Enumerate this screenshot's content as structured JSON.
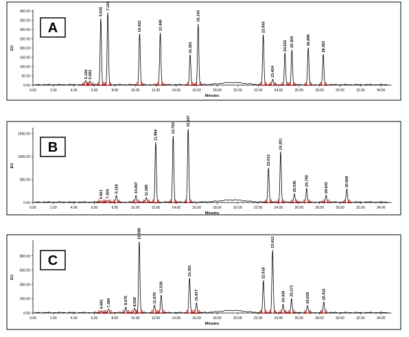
{
  "chart_data": [
    {
      "type": "line",
      "panel_label": "A",
      "xlabel": "Minutes",
      "ylabel": "EU",
      "xlim": [
        0,
        35
      ],
      "ylim": [
        0,
        400
      ],
      "x_ticks": [
        "0.00",
        "2.00",
        "4.00",
        "6.00",
        "8.00",
        "10.00",
        "12.00",
        "14.00",
        "16.00",
        "18.00",
        "20.00",
        "22.00",
        "24.00",
        "26.00",
        "28.00",
        "30.00",
        "32.00",
        "34.00"
      ],
      "y_ticks": [
        "0.00",
        "50.00",
        "100.00",
        "150.00",
        "200.00",
        "250.00",
        "300.00",
        "350.00",
        "400.00"
      ],
      "peaks": [
        {
          "rt": 5.16,
          "label": "5.160",
          "height": 22
        },
        {
          "rt": 5.583,
          "label": "5.583",
          "height": 20
        },
        {
          "rt": 6.632,
          "label": "6.632",
          "height": 360
        },
        {
          "rt": 7.316,
          "label": "7.316",
          "height": 390
        },
        {
          "rt": 10.422,
          "label": "10.422",
          "height": 275
        },
        {
          "rt": 12.44,
          "label": "12.440",
          "height": 280
        },
        {
          "rt": 15.361,
          "label": "15.361",
          "height": 160
        },
        {
          "rt": 16.143,
          "label": "16.143",
          "height": 330
        },
        {
          "rt": 22.503,
          "label": "22.503",
          "height": 270
        },
        {
          "rt": 23.424,
          "label": "23.424",
          "height": 30
        },
        {
          "rt": 24.623,
          "label": "24.623",
          "height": 170
        },
        {
          "rt": 25.304,
          "label": "25.304",
          "height": 190
        },
        {
          "rt": 26.898,
          "label": "26.898",
          "height": 200
        },
        {
          "rt": 28.363,
          "label": "28.363",
          "height": 165
        }
      ]
    },
    {
      "type": "line",
      "panel_label": "B",
      "xlabel": "Minutes",
      "ylabel": "EU",
      "xlim": [
        0,
        35
      ],
      "ylim": [
        0,
        1600
      ],
      "x_ticks": [
        "0.00",
        "2.00",
        "4.00",
        "6.00",
        "8.00",
        "10.00",
        "12.00",
        "14.00",
        "16.00",
        "18.00",
        "20.00",
        "22.00",
        "24.00",
        "26.00",
        "28.00",
        "30.00",
        "32.00",
        "34.00"
      ],
      "y_ticks": [
        "0.00",
        "500.00",
        "1000.00",
        "1500.00"
      ],
      "peaks": [
        {
          "rt": 6.661,
          "label": "6.661",
          "height": 30
        },
        {
          "rt": 7.304,
          "label": "7.304",
          "height": 40
        },
        {
          "rt": 8.15,
          "label": "8.150",
          "height": 150
        },
        {
          "rt": 10.067,
          "label": "10.067",
          "height": 150
        },
        {
          "rt": 11.085,
          "label": "11.085",
          "height": 100
        },
        {
          "rt": 11.994,
          "label": "11.994",
          "height": 1300
        },
        {
          "rt": 13.703,
          "label": "13.703",
          "height": 1450
        },
        {
          "rt": 15.167,
          "label": "15.167",
          "height": 1600
        },
        {
          "rt": 23.012,
          "label": "23.012",
          "height": 750
        },
        {
          "rt": 24.201,
          "label": "24.201",
          "height": 1100
        },
        {
          "rt": 25.545,
          "label": "25.545",
          "height": 180
        },
        {
          "rt": 26.74,
          "label": "26.740",
          "height": 300
        },
        {
          "rt": 28.643,
          "label": "28.643",
          "height": 150
        },
        {
          "rt": 30.668,
          "label": "30.668",
          "height": 280
        }
      ]
    },
    {
      "type": "line",
      "panel_label": "C",
      "xlabel": "Minutes",
      "ylabel": "EU",
      "xlim": [
        0,
        35
      ],
      "ylim": [
        0,
        1000
      ],
      "x_ticks": [
        "0.00",
        "2.00",
        "4.00",
        "6.00",
        "8.00",
        "10.00",
        "12.00",
        "14.00",
        "16.00",
        "18.00",
        "20.00",
        "22.00",
        "24.00",
        "26.00",
        "28.00",
        "30.00",
        "32.00",
        "34.00"
      ],
      "y_ticks": [
        "0.00",
        "200.00",
        "400.00",
        "600.00",
        "800.00"
      ],
      "peaks": [
        {
          "rt": 6.691,
          "label": "6.691",
          "height": 30
        },
        {
          "rt": 7.394,
          "label": "7.394",
          "height": 45
        },
        {
          "rt": 9.075,
          "label": "9.075",
          "height": 80
        },
        {
          "rt": 9.938,
          "label": "9.938",
          "height": 60
        },
        {
          "rt": 10.388,
          "label": "10.388",
          "height": 1000
        },
        {
          "rt": 11.878,
          "label": "11.878",
          "height": 100
        },
        {
          "rt": 12.53,
          "label": "12.530",
          "height": 250
        },
        {
          "rt": 15.301,
          "label": "15.301",
          "height": 480
        },
        {
          "rt": 15.977,
          "label": "15.977",
          "height": 140
        },
        {
          "rt": 22.518,
          "label": "22.518",
          "height": 450
        },
        {
          "rt": 23.413,
          "label": "23.413",
          "height": 880
        },
        {
          "rt": 24.438,
          "label": "24.438",
          "height": 120
        },
        {
          "rt": 25.271,
          "label": "25.271",
          "height": 200
        },
        {
          "rt": 26.829,
          "label": "26.829",
          "height": 100
        },
        {
          "rt": 28.416,
          "label": "28.416",
          "height": 150
        }
      ]
    }
  ]
}
